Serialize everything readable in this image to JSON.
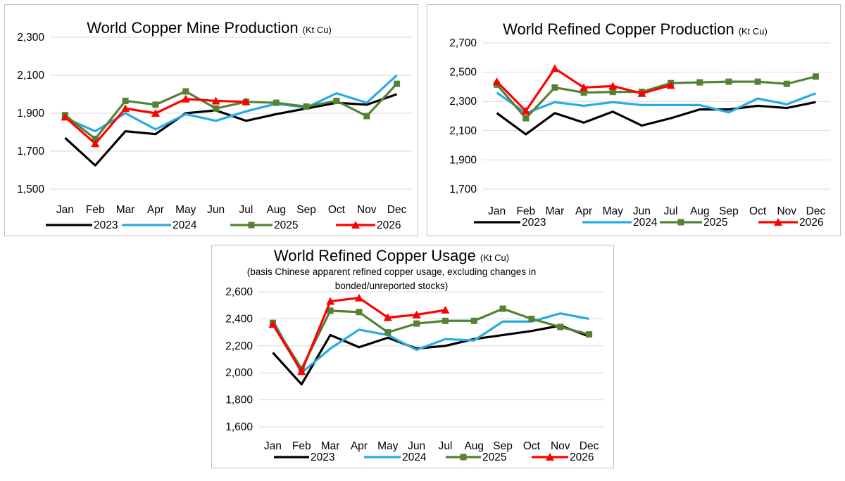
{
  "charts": [
    {
      "type": "line",
      "title": "World Copper Mine Production",
      "unit": "(Kt Cu)",
      "subtitle": "",
      "categories": [
        "Jan",
        "Feb",
        "Mar",
        "Apr",
        "May",
        "Jun",
        "Jul",
        "Aug",
        "Sep",
        "Oct",
        "Nov",
        "Dec"
      ],
      "y_ticks": [
        "1,500",
        "1,700",
        "1,900",
        "2,100",
        "2,300"
      ],
      "ylim": [
        1500,
        2300
      ],
      "grid": true,
      "legend_position": "bottom",
      "series": [
        {
          "name": "2023",
          "color": "#000000",
          "marker": "none",
          "values": [
            1770,
            1625,
            1805,
            1790,
            1900,
            1915,
            1860,
            1895,
            1925,
            1955,
            1945,
            2000
          ]
        },
        {
          "name": "2024",
          "color": "#29ABE2",
          "marker": "none",
          "values": [
            1875,
            1805,
            1900,
            1815,
            1895,
            1860,
            1910,
            1950,
            1930,
            2005,
            1955,
            2100
          ]
        },
        {
          "name": "2025",
          "color": "#548235",
          "marker": "square",
          "values": [
            1890,
            1765,
            1965,
            1945,
            2015,
            1925,
            1960,
            1955,
            1935,
            1965,
            1885,
            2055
          ]
        },
        {
          "name": "2026",
          "color": "#FF0000",
          "marker": "triangle",
          "values": [
            1880,
            1740,
            1925,
            1900,
            1975,
            1965,
            1960,
            null,
            null,
            null,
            null,
            null
          ]
        }
      ]
    },
    {
      "type": "line",
      "title": "World Refined Copper Production",
      "unit": "(Kt Cu)",
      "subtitle": "",
      "categories": [
        "Jan",
        "Feb",
        "Mar",
        "Apr",
        "May",
        "Jun",
        "Jul",
        "Aug",
        "Sep",
        "Oct",
        "Nov",
        "Dec"
      ],
      "y_ticks": [
        "1,700",
        "1,900",
        "2,100",
        "2,300",
        "2,500",
        "2,700"
      ],
      "ylim": [
        1700,
        2700
      ],
      "grid": true,
      "legend_position": "bottom",
      "series": [
        {
          "name": "2023",
          "color": "#000000",
          "marker": "none",
          "values": [
            2220,
            2075,
            2220,
            2155,
            2230,
            2135,
            2185,
            2245,
            2245,
            2270,
            2255,
            2295
          ]
        },
        {
          "name": "2024",
          "color": "#29ABE2",
          "marker": "none",
          "values": [
            2360,
            2220,
            2295,
            2270,
            2295,
            2275,
            2275,
            2275,
            2225,
            2320,
            2280,
            2355
          ]
        },
        {
          "name": "2025",
          "color": "#548235",
          "marker": "square",
          "values": [
            2415,
            2185,
            2395,
            2360,
            2365,
            2365,
            2425,
            2430,
            2435,
            2435,
            2420,
            2470
          ]
        },
        {
          "name": "2026",
          "color": "#FF0000",
          "marker": "triangle",
          "values": [
            2435,
            2235,
            2525,
            2395,
            2405,
            2355,
            2410,
            null,
            null,
            null,
            null,
            null
          ]
        }
      ]
    },
    {
      "type": "line",
      "title": "World Refined Copper Usage",
      "unit": "(Kt Cu)",
      "subtitle": [
        "(basis Chinese apparent refined copper usage, excluding changes in",
        "bonded/unreported stocks)"
      ],
      "categories": [
        "Jan",
        "Feb",
        "Mar",
        "Apr",
        "May",
        "Jun",
        "Jul",
        "Aug",
        "Sep",
        "Oct",
        "Nov",
        "Dec"
      ],
      "y_ticks": [
        "1,600",
        "1,800",
        "2,000",
        "2,200",
        "2,400",
        "2,600"
      ],
      "ylim": [
        1600,
        2600
      ],
      "grid": true,
      "legend_position": "bottom",
      "series": [
        {
          "name": "2023",
          "color": "#000000",
          "marker": "none",
          "values": [
            2150,
            1915,
            2280,
            2190,
            2260,
            2180,
            2200,
            2250,
            2280,
            2310,
            2350,
            2270
          ]
        },
        {
          "name": "2024",
          "color": "#29ABE2",
          "marker": "none",
          "values": [
            2390,
            2000,
            2180,
            2320,
            2280,
            2170,
            2250,
            2240,
            2380,
            2380,
            2440,
            2400
          ]
        },
        {
          "name": "2025",
          "color": "#548235",
          "marker": "square",
          "values": [
            2370,
            2030,
            2460,
            2450,
            2300,
            2365,
            2385,
            2385,
            2475,
            2400,
            2340,
            2285
          ]
        },
        {
          "name": "2026",
          "color": "#FF0000",
          "marker": "triangle",
          "values": [
            2360,
            2010,
            2530,
            2555,
            2410,
            2430,
            2465,
            null,
            null,
            null,
            null,
            null
          ]
        }
      ]
    }
  ]
}
